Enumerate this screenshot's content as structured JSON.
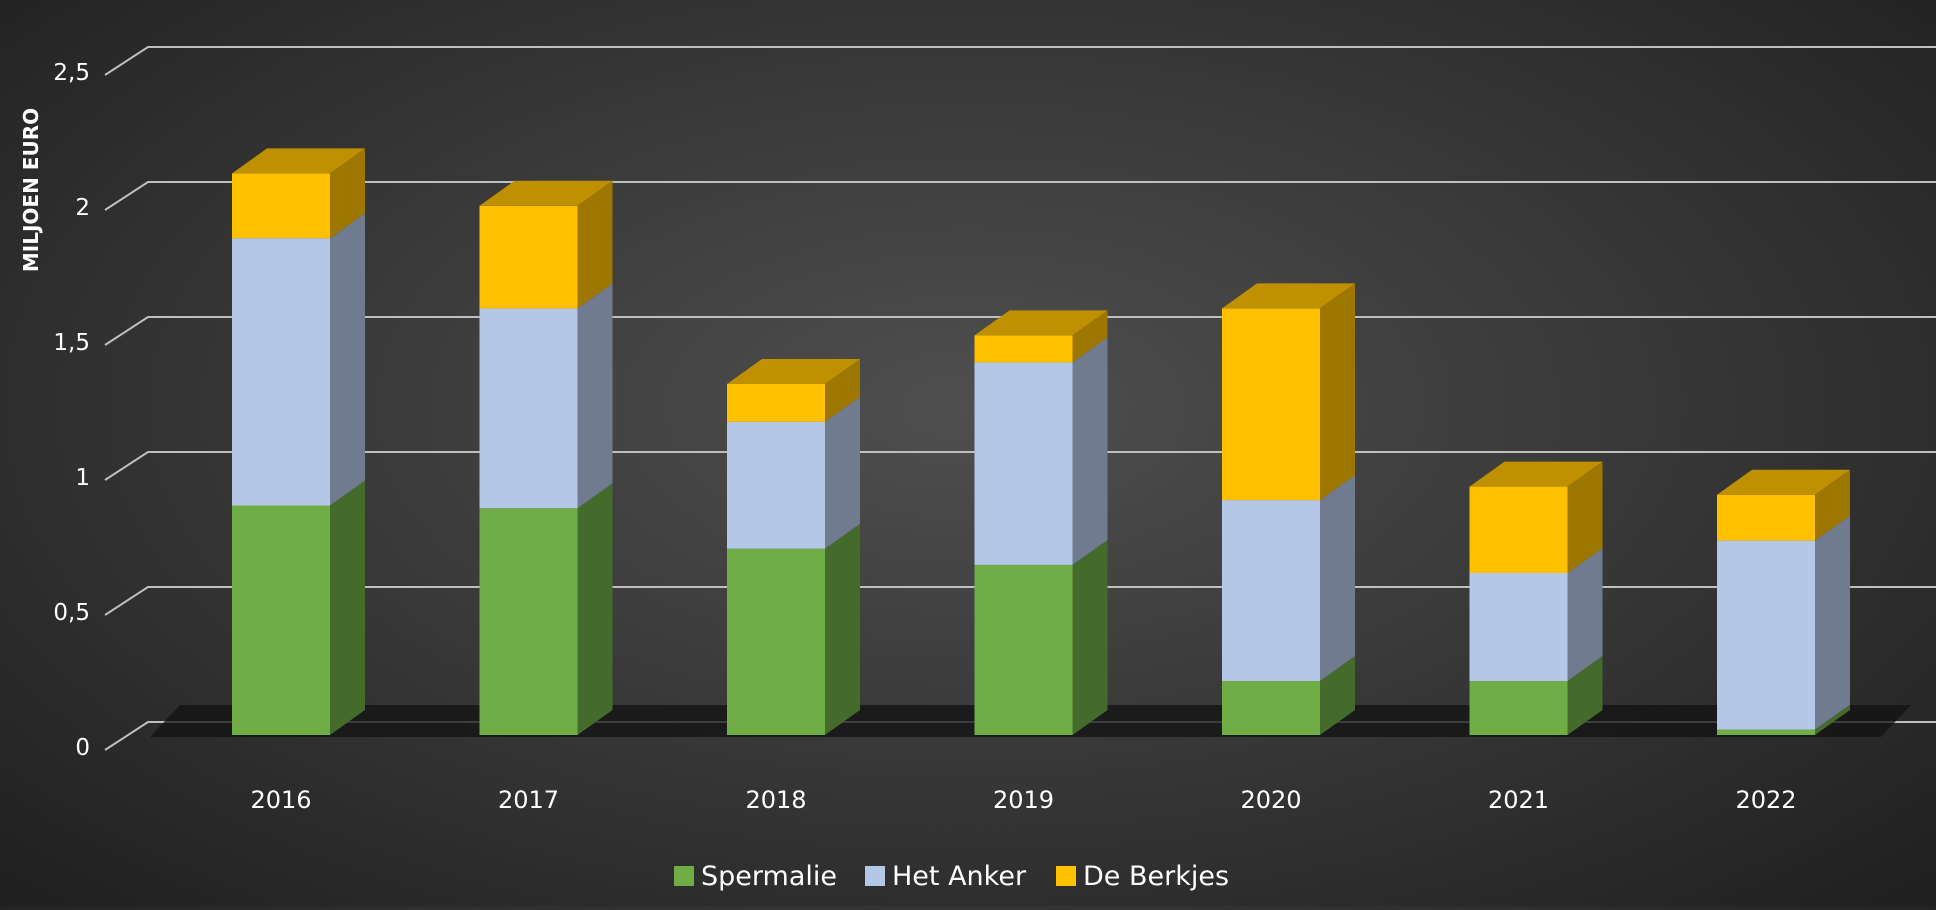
{
  "chart_data": {
    "type": "bar",
    "stacked": true,
    "three_d": true,
    "categories": [
      "2016",
      "2017",
      "2018",
      "2019",
      "2020",
      "2021",
      "2022"
    ],
    "series": [
      {
        "name": "Spermalie",
        "values": [
          0.85,
          0.84,
          0.69,
          0.63,
          0.2,
          0.2,
          0.02
        ],
        "color": "#70ad47"
      },
      {
        "name": "Het Anker",
        "values": [
          0.99,
          0.74,
          0.47,
          0.75,
          0.67,
          0.4,
          0.7
        ],
        "color": "#b4c7e7"
      },
      {
        "name": "De Berkjes",
        "values": [
          0.24,
          0.38,
          0.14,
          0.1,
          0.71,
          0.32,
          0.17
        ],
        "color": "#ffc000"
      }
    ],
    "ylabel": "MILJOEN EURO",
    "ylim": [
      0,
      2.5
    ],
    "yticks": [
      "0",
      "0,5",
      "1",
      "1,5",
      "2",
      "2,5"
    ],
    "grid": true,
    "legend": "bottom"
  }
}
